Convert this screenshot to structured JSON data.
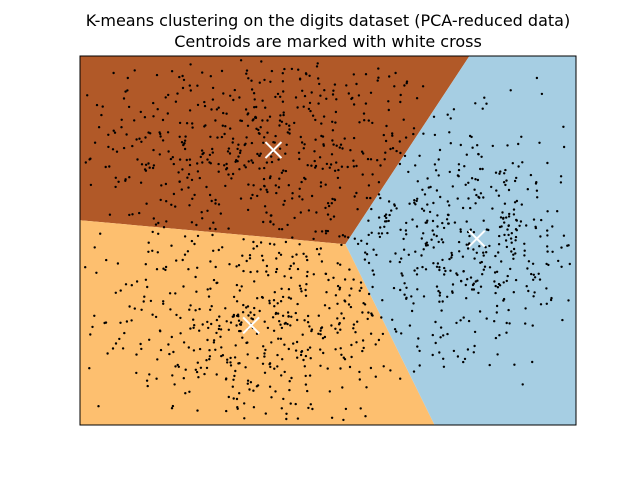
{
  "chart_data": {
    "type": "scatter",
    "title": "K-means clustering on the digits dataset (PCA-reduced data)",
    "subtitle": "Centroids are marked with white cross",
    "xlabel": "",
    "ylabel": "",
    "xlim": [
      -1.0,
      1.0
    ],
    "ylim": [
      -1.0,
      1.0
    ],
    "grid": false,
    "ticks": false,
    "regions": [
      {
        "cluster": 0,
        "color": "#b15928",
        "vertices": [
          [
            -1.0,
            0.11
          ],
          [
            0.07,
            -0.02
          ],
          [
            0.57,
            1.0
          ],
          [
            -1.0,
            1.0
          ]
        ]
      },
      {
        "cluster": 1,
        "color": "#fdbf6f",
        "vertices": [
          [
            -1.0,
            0.11
          ],
          [
            0.07,
            -0.02
          ],
          [
            0.43,
            -1.0
          ],
          [
            -1.0,
            -1.0
          ]
        ]
      },
      {
        "cluster": 2,
        "color": "#a6cee3",
        "vertices": [
          [
            0.07,
            -0.02
          ],
          [
            0.57,
            1.0
          ],
          [
            1.0,
            1.0
          ],
          [
            1.0,
            -1.0
          ],
          [
            0.43,
            -1.0
          ]
        ]
      }
    ],
    "centroids": [
      {
        "x": -0.22,
        "y": 0.49,
        "color": "#ffffff"
      },
      {
        "x": -0.31,
        "y": -0.46,
        "color": "#ffffff"
      },
      {
        "x": 0.6,
        "y": 0.01,
        "color": "#ffffff"
      }
    ],
    "point_groups": [
      {
        "center": [
          -0.3,
          0.52
        ],
        "spread": [
          0.38,
          0.27
        ],
        "count": 560
      },
      {
        "center": [
          -0.3,
          -0.46
        ],
        "spread": [
          0.34,
          0.28
        ],
        "count": 520
      },
      {
        "center": [
          0.58,
          0.02
        ],
        "spread": [
          0.26,
          0.3
        ],
        "count": 460
      }
    ],
    "point_color": "#000000"
  }
}
